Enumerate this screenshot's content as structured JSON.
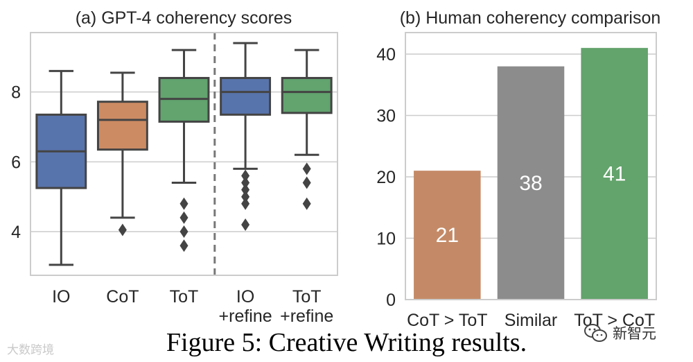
{
  "chart_data": [
    {
      "type": "box",
      "title": "(a) GPT-4 coherency scores",
      "categories": [
        [
          "IO"
        ],
        [
          "CoT"
        ],
        [
          "ToT"
        ],
        [
          "IO",
          "+refine"
        ],
        [
          "ToT",
          "+refine"
        ]
      ],
      "colors": [
        "#5874ac",
        "#cd8b63",
        "#62a36e",
        "#5874ac",
        "#62a36e"
      ],
      "yticks": [
        4,
        6,
        8
      ],
      "ylim": [
        2.75,
        9.7
      ],
      "grid": true,
      "separator_after_index": 2,
      "boxes": [
        {
          "whislo": 3.05,
          "q1": 5.25,
          "med": 6.3,
          "q3": 7.35,
          "whishi": 8.6,
          "fliers": []
        },
        {
          "whislo": 4.4,
          "q1": 6.35,
          "med": 7.2,
          "q3": 7.72,
          "whishi": 8.55,
          "fliers": [
            4.05
          ]
        },
        {
          "whislo": 5.4,
          "q1": 7.15,
          "med": 7.8,
          "q3": 8.4,
          "whishi": 9.2,
          "fliers": [
            4.8,
            4.4,
            4.0,
            3.6
          ]
        },
        {
          "whislo": 5.8,
          "q1": 7.35,
          "med": 8.0,
          "q3": 8.4,
          "whishi": 9.4,
          "fliers": [
            5.6,
            5.4,
            5.2,
            5.0,
            4.8,
            4.2
          ]
        },
        {
          "whislo": 6.2,
          "q1": 7.4,
          "med": 8.0,
          "q3": 8.4,
          "whishi": 9.2,
          "fliers": [
            5.8,
            5.4,
            4.8
          ]
        }
      ]
    },
    {
      "type": "bar",
      "title": "(b) Human coherency comparison",
      "categories": [
        "CoT > ToT",
        "Similar",
        "ToT > CoT"
      ],
      "values": [
        21,
        38,
        41
      ],
      "value_labels": [
        "21",
        "38",
        "41"
      ],
      "colors": [
        "#c48a67",
        "#8c8c8c",
        "#63a36c"
      ],
      "yticks": [
        0,
        10,
        20,
        30,
        40
      ],
      "ylim": [
        0,
        43.5
      ],
      "grid": true
    }
  ],
  "caption": "Figure 5: Creative Writing results.",
  "watermark_left": "大数跨境",
  "watermark_right": "新智元"
}
